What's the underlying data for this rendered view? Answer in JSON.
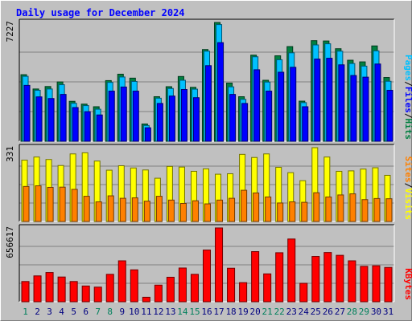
{
  "chart_data": {
    "type": "bar",
    "title": "Daily usage for December 2024",
    "categories": [
      "1",
      "2",
      "3",
      "4",
      "5",
      "6",
      "7",
      "8",
      "9",
      "10",
      "11",
      "12",
      "13",
      "14",
      "15",
      "16",
      "17",
      "18",
      "19",
      "20",
      "21",
      "22",
      "23",
      "24",
      "25",
      "26",
      "27",
      "28",
      "29",
      "30",
      "31"
    ],
    "weekend_days": [
      "1",
      "7",
      "8",
      "14",
      "15",
      "21",
      "22",
      "28",
      "29"
    ],
    "panels": [
      {
        "name": "top",
        "max_label": "7227",
        "ylim": [
          0,
          7227
        ],
        "right_labels": [
          "Pages",
          "Files",
          "Hits"
        ],
        "series": [
          {
            "name": "Hits",
            "color": "#008040",
            "values": [
              4050,
              3180,
              3330,
              3610,
              2430,
              2260,
              2100,
              3690,
              4080,
              3840,
              1050,
              2710,
              3320,
              3940,
              3280,
              5580,
              7227,
              3540,
              2710,
              5240,
              3710,
              5200,
              5760,
              2440,
              6120,
              6100,
              5630,
              4930,
              4830,
              5800,
              3880
            ]
          },
          {
            "name": "Files",
            "color": "#00c0ff",
            "values": [
              3950,
              3100,
              3180,
              3440,
              2310,
              2170,
              1950,
              3580,
              3910,
              3640,
              960,
              2620,
              3210,
              3710,
              3170,
              5480,
              7100,
              3310,
              2550,
              5140,
              3600,
              4960,
              5380,
              2350,
              5860,
              5930,
              5480,
              4730,
              4570,
              5500,
              3650
            ]
          },
          {
            "name": "Pages",
            "color": "#0000ff",
            "values": [
              3400,
              2700,
              2600,
              2850,
              2050,
              1800,
              1600,
              3050,
              3300,
              3050,
              820,
              2300,
              2750,
              3150,
              2650,
              4600,
              6000,
              2850,
              2300,
              4350,
              3050,
              4200,
              4500,
              2100,
              5000,
              5050,
              4650,
              4000,
              3900,
              4700,
              3100
            ]
          }
        ]
      },
      {
        "name": "middle",
        "max_label": "331",
        "ylim": [
          0,
          331
        ],
        "right_labels": [
          "Sites",
          "Visits"
        ],
        "series": [
          {
            "name": "Visits",
            "color": "#ffff00",
            "values": [
              275,
              289,
              278,
              251,
              303,
              308,
              271,
              230,
              250,
              240,
              231,
              194,
              247,
              244,
              225,
              236,
              212,
              214,
              301,
              287,
              303,
              243,
              219,
              183,
              331,
              289,
              225,
              227,
              235,
              241,
              207
            ]
          },
          {
            "name": "Sites",
            "color": "#ff8000",
            "values": [
              157,
              160,
              153,
              154,
              144,
              113,
              88,
              115,
              104,
              106,
              91,
              113,
              96,
              81,
              93,
              79,
              96,
              104,
              140,
              128,
              110,
              83,
              88,
              86,
              129,
              110,
              119,
              124,
              98,
              103,
              102
            ]
          }
        ]
      },
      {
        "name": "bottom",
        "max_label": "656617",
        "ylim": [
          0,
          656617
        ],
        "right_labels": [
          "KBytes"
        ],
        "series": [
          {
            "name": "KBytes",
            "color": "#ff0000",
            "values": [
              180000,
              230000,
              260000,
              220000,
              180000,
              140000,
              130000,
              244000,
              364000,
              284000,
              40000,
              148000,
              218000,
              300000,
              244000,
              460000,
              656617,
              298000,
              170000,
              446000,
              248000,
              436000,
              558000,
              164000,
              403000,
              438000,
              413000,
              364000,
              315000,
              320000,
              305000
            ]
          }
        ]
      }
    ],
    "grid": true
  }
}
